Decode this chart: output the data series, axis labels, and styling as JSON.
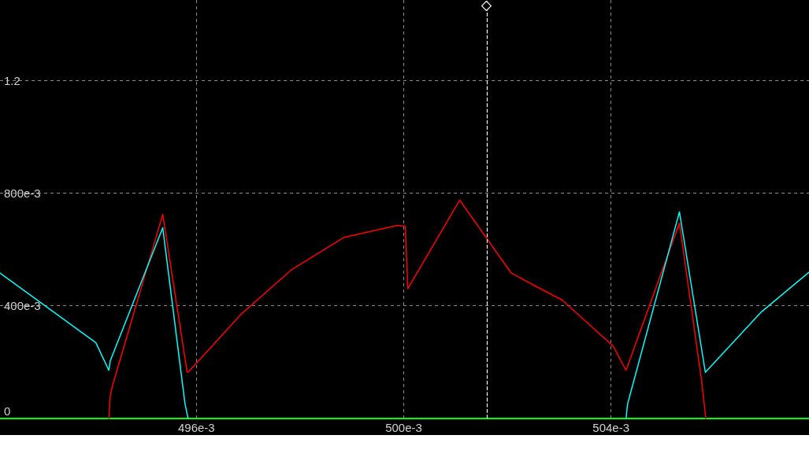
{
  "chart_data": {
    "type": "line",
    "series": [
      {
        "color": "#ff0000",
        "x": [
          0.49431,
          0.49434,
          0.49439,
          0.49535,
          0.49582,
          0.49584,
          0.49685,
          0.49783,
          0.49885,
          0.49988,
          0.50003,
          0.50008,
          0.50108,
          0.50207,
          0.50255,
          0.50306,
          0.50404,
          0.50429,
          0.50532,
          0.50574,
          0.50583
        ],
        "values": [
          0,
          0.085,
          0.122,
          0.724,
          0.166,
          0.164,
          0.368,
          0.527,
          0.643,
          0.685,
          0.682,
          0.461,
          0.775,
          0.517,
          0.469,
          0.42,
          0.257,
          0.171,
          0.694,
          0.145,
          0
        ]
      },
      {
        "color": "#00ffff",
        "x": [
          0.49221,
          0.49406,
          0.49431,
          0.49434,
          0.49535,
          0.49578,
          0.49584,
          0.5,
          0.50429,
          0.50432,
          0.50532,
          0.50582,
          0.5069,
          0.50782
        ],
        "values": [
          0.516,
          0.269,
          0.171,
          0.206,
          0.677,
          0.052,
          0,
          null,
          0,
          0.052,
          0.733,
          0.164,
          0.378,
          0.519
        ]
      }
    ],
    "xlim": [
      0.49221,
      0.50782
    ],
    "xticks": [
      {
        "value": 0.496,
        "label": "496e-3"
      },
      {
        "value": 0.5,
        "label": "500e-3"
      },
      {
        "value": 0.504,
        "label": "504e-3"
      }
    ],
    "ylim": [
      0,
      1.485
    ],
    "yticks": [
      0,
      {
        "value": 0.4,
        "label": "400e-3"
      },
      {
        "value": 0.8,
        "label": "800e-3"
      },
      1.2
    ],
    "grid": true,
    "ref_lines": [
      {
        "axis": "x",
        "value": 0.5016,
        "color": "#ffffff",
        "line_style": "dashed"
      }
    ]
  }
}
